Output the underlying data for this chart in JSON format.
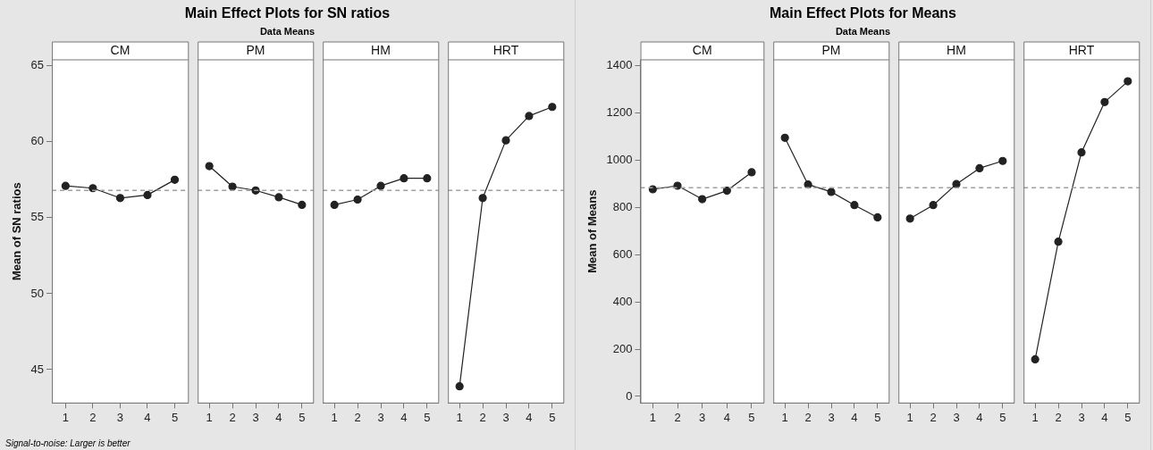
{
  "chart_data": [
    {
      "type": "line",
      "ylabel": "Mean of SN ratios",
      "x2label": "CM",
      "categories": [
        "1",
        "2",
        "3",
        "4",
        "5"
      ],
      "series": [
        {
          "color": "#222222",
          "values": [
            57.1,
            56.95,
            56.3,
            56.5,
            57.5
          ]
        }
      ],
      "ylim": [
        42.8,
        65.4
      ],
      "yticks": [
        45,
        50,
        55,
        60,
        65
      ],
      "marker": "circle",
      "line_style": "solid",
      "grid": false,
      "legend": false,
      "ref_lines": [
        {
          "axis": "y",
          "value": 56.8,
          "color": "#a0a0a0",
          "line_style": "dashed"
        }
      ],
      "annotations": [
        "Signal-to-noise: Larger is better"
      ]
    },
    {
      "type": "line",
      "title": "Main Effect Plots for SN ratios",
      "subtitle": "Data Means",
      "x2label": "PM",
      "categories": [
        "1",
        "2",
        "3",
        "4",
        "5"
      ],
      "series": [
        {
          "color": "#222222",
          "values": [
            58.4,
            57.05,
            56.8,
            56.35,
            55.85
          ]
        }
      ],
      "ylim": [
        42.8,
        65.4
      ],
      "tick_labels": "x",
      "marker": "circle",
      "line_style": "solid",
      "grid": false,
      "legend": false,
      "ref_lines": [
        {
          "axis": "y",
          "value": 56.8,
          "color": "#a0a0a0",
          "line_style": "dashed"
        }
      ]
    },
    {
      "type": "line",
      "x2label": "HM",
      "categories": [
        "1",
        "2",
        "3",
        "4",
        "5"
      ],
      "series": [
        {
          "color": "#222222",
          "values": [
            55.85,
            56.2,
            57.1,
            57.6,
            57.6
          ]
        }
      ],
      "ylim": [
        42.8,
        65.4
      ],
      "tick_labels": "x",
      "marker": "circle",
      "line_style": "solid",
      "grid": false,
      "legend": false,
      "ref_lines": [
        {
          "axis": "y",
          "value": 56.8,
          "color": "#a0a0a0",
          "line_style": "dashed"
        }
      ]
    },
    {
      "type": "line",
      "x2label": "HRT",
      "categories": [
        "1",
        "2",
        "3",
        "4",
        "5"
      ],
      "series": [
        {
          "color": "#222222",
          "values": [
            43.9,
            56.3,
            60.1,
            61.7,
            62.3
          ]
        }
      ],
      "ylim": [
        42.8,
        65.4
      ],
      "tick_labels": "x",
      "marker": "circle",
      "line_style": "solid",
      "grid": false,
      "legend": false,
      "ref_lines": [
        {
          "axis": "y",
          "value": 56.8,
          "color": "#a0a0a0",
          "line_style": "dashed"
        }
      ]
    },
    {
      "type": "line",
      "ylabel": "Mean of Means",
      "x2label": "CM",
      "categories": [
        "1",
        "2",
        "3",
        "4",
        "5"
      ],
      "series": [
        {
          "color": "#222222",
          "values": [
            877,
            892,
            835,
            871,
            949
          ]
        }
      ],
      "ylim": [
        -28,
        1425
      ],
      "yticks": [
        0,
        200,
        400,
        600,
        800,
        1000,
        1200,
        1400
      ],
      "marker": "circle",
      "line_style": "solid",
      "grid": false,
      "legend": false,
      "ref_lines": [
        {
          "axis": "y",
          "value": 884,
          "color": "#a0a0a0",
          "line_style": "dashed"
        }
      ]
    },
    {
      "type": "line",
      "title": "Main Effect Plots for Means",
      "subtitle": "Data Means",
      "x2label": "PM",
      "categories": [
        "1",
        "2",
        "3",
        "4",
        "5"
      ],
      "series": [
        {
          "color": "#222222",
          "values": [
            1095,
            897,
            866,
            810,
            758
          ]
        }
      ],
      "ylim": [
        -28,
        1425
      ],
      "tick_labels": "x",
      "marker": "circle",
      "line_style": "solid",
      "grid": false,
      "legend": false,
      "ref_lines": [
        {
          "axis": "y",
          "value": 884,
          "color": "#a0a0a0",
          "line_style": "dashed"
        }
      ]
    },
    {
      "type": "line",
      "x2label": "HM",
      "categories": [
        "1",
        "2",
        "3",
        "4",
        "5"
      ],
      "series": [
        {
          "color": "#222222",
          "values": [
            753,
            810,
            899,
            966,
            997
          ]
        }
      ],
      "ylim": [
        -28,
        1425
      ],
      "tick_labels": "x",
      "marker": "circle",
      "line_style": "solid",
      "grid": false,
      "legend": false,
      "ref_lines": [
        {
          "axis": "y",
          "value": 884,
          "color": "#a0a0a0",
          "line_style": "dashed"
        }
      ]
    },
    {
      "type": "line",
      "x2label": "HRT",
      "categories": [
        "1",
        "2",
        "3",
        "4",
        "5"
      ],
      "series": [
        {
          "color": "#222222",
          "values": [
            157,
            655,
            1033,
            1246,
            1334
          ]
        }
      ],
      "ylim": [
        -28,
        1425
      ],
      "tick_labels": "x",
      "marker": "circle",
      "line_style": "solid",
      "grid": false,
      "legend": false,
      "ref_lines": [
        {
          "axis": "y",
          "value": 884,
          "color": "#a0a0a0",
          "line_style": "dashed"
        }
      ]
    }
  ]
}
